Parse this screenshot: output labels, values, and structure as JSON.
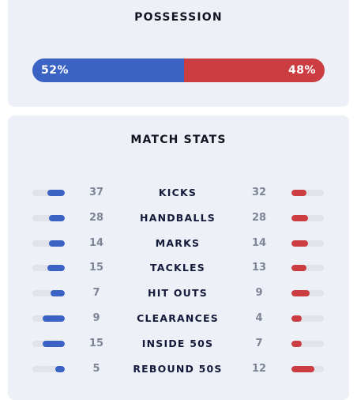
{
  "possession": {
    "title": "POSSESSION",
    "home_pct": 52,
    "away_pct": 48,
    "home_label": "52%",
    "away_label": "48%",
    "home_color": "#3b63c4",
    "away_color": "#cc3d42"
  },
  "match_stats": {
    "title": "MATCH STATS",
    "rows": [
      {
        "name": "KICKS",
        "home": "37",
        "away": "32",
        "home_fill": 0.54,
        "away_fill": 0.46
      },
      {
        "name": "HANDBALLS",
        "home": "28",
        "away": "28",
        "home_fill": 0.5,
        "away_fill": 0.5
      },
      {
        "name": "MARKS",
        "home": "14",
        "away": "14",
        "home_fill": 0.5,
        "away_fill": 0.5
      },
      {
        "name": "TACKLES",
        "home": "15",
        "away": "13",
        "home_fill": 0.54,
        "away_fill": 0.46
      },
      {
        "name": "HIT OUTS",
        "home": "7",
        "away": "9",
        "home_fill": 0.44,
        "away_fill": 0.56
      },
      {
        "name": "CLEARANCES",
        "home": "9",
        "away": "4",
        "home_fill": 0.69,
        "away_fill": 0.31
      },
      {
        "name": "INSIDE 50S",
        "home": "15",
        "away": "7",
        "home_fill": 0.68,
        "away_fill": 0.32
      },
      {
        "name": "REBOUND 50S",
        "home": "5",
        "away": "12",
        "home_fill": 0.29,
        "away_fill": 0.71
      }
    ]
  }
}
